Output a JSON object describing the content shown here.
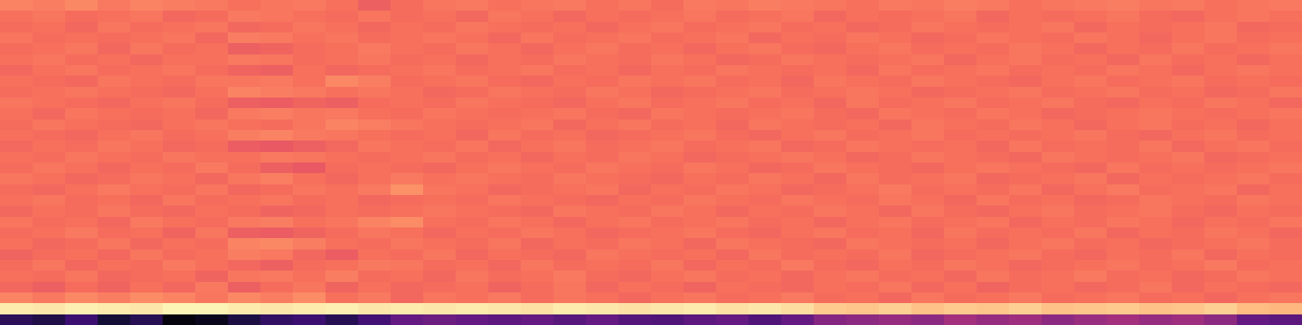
{
  "chart_data": {
    "type": "heatmap",
    "color": "magma",
    "tick_labels": false,
    "zlim": [
      0,
      1
    ],
    "cells": [
      [
        0.16,
        0.13,
        0.2,
        0.1,
        0.15,
        0.02,
        0.05,
        0.12,
        0.18,
        0.2,
        0.15,
        0.22,
        0.3,
        0.32,
        0.3,
        0.28,
        0.3,
        0.27,
        0.3,
        0.26,
        0.25,
        0.28,
        0.3,
        0.25,
        0.3,
        0.38,
        0.4,
        0.42,
        0.4,
        0.45,
        0.42,
        0.44,
        0.4,
        0.43,
        0.45,
        0.42,
        0.44,
        0.4,
        0.3,
        0.28
      ],
      [
        0.96,
        0.95,
        0.97,
        0.96,
        0.95,
        0.98,
        0.98,
        0.96,
        0.95,
        0.96,
        0.97,
        0.95,
        0.96,
        0.95,
        0.96,
        0.95,
        0.94,
        0.96,
        0.95,
        0.94,
        0.95,
        0.96,
        0.94,
        0.95,
        0.93,
        0.89,
        0.88,
        0.9,
        0.87,
        0.89,
        0.88,
        0.9,
        0.87,
        0.88,
        0.89,
        0.87,
        0.88,
        0.9,
        0.86,
        0.85
      ],
      [
        0.74,
        0.72,
        0.75,
        0.73,
        0.76,
        0.74,
        0.71,
        0.75,
        0.73,
        0.76,
        0.7,
        0.72,
        0.68,
        0.71,
        0.7,
        0.72,
        0.69,
        0.71,
        0.7,
        0.68,
        0.7,
        0.71,
        0.69,
        0.7,
        0.72,
        0.69,
        0.7,
        0.68,
        0.71,
        0.69,
        0.7,
        0.72,
        0.69,
        0.7,
        0.71,
        0.69,
        0.7,
        0.68,
        0.7,
        0.71
      ],
      [
        0.68,
        0.66,
        0.69,
        0.67,
        0.7,
        0.68,
        0.72,
        0.66,
        0.69,
        0.71,
        0.67,
        0.7,
        0.68,
        0.69,
        0.7,
        0.67,
        0.69,
        0.71,
        0.68,
        0.7,
        0.69,
        0.67,
        0.7,
        0.69,
        0.68,
        0.7,
        0.69,
        0.71,
        0.68,
        0.7,
        0.67,
        0.69,
        0.7,
        0.68,
        0.69,
        0.71,
        0.68,
        0.7,
        0.69,
        0.68
      ],
      [
        0.7,
        0.69,
        0.71,
        0.68,
        0.69,
        0.7,
        0.67,
        0.71,
        0.72,
        0.7,
        0.73,
        0.69,
        0.7,
        0.68,
        0.71,
        0.69,
        0.7,
        0.72,
        0.69,
        0.68,
        0.7,
        0.71,
        0.69,
        0.7,
        0.68,
        0.7,
        0.71,
        0.69,
        0.7,
        0.68,
        0.71,
        0.69,
        0.7,
        0.72,
        0.69,
        0.7,
        0.68,
        0.69,
        0.71,
        0.7
      ],
      [
        0.69,
        0.71,
        0.68,
        0.7,
        0.69,
        0.72,
        0.7,
        0.68,
        0.66,
        0.69,
        0.7,
        0.72,
        0.71,
        0.69,
        0.7,
        0.68,
        0.71,
        0.69,
        0.7,
        0.69,
        0.71,
        0.68,
        0.7,
        0.69,
        0.72,
        0.69,
        0.68,
        0.7,
        0.69,
        0.71,
        0.7,
        0.68,
        0.69,
        0.7,
        0.71,
        0.69,
        0.7,
        0.72,
        0.69,
        0.7
      ],
      [
        0.67,
        0.69,
        0.7,
        0.68,
        0.71,
        0.69,
        0.7,
        0.73,
        0.72,
        0.68,
        0.65,
        0.7,
        0.69,
        0.71,
        0.68,
        0.7,
        0.69,
        0.68,
        0.71,
        0.7,
        0.69,
        0.7,
        0.68,
        0.71,
        0.69,
        0.7,
        0.69,
        0.71,
        0.68,
        0.69,
        0.7,
        0.71,
        0.69,
        0.68,
        0.7,
        0.69,
        0.71,
        0.68,
        0.7,
        0.69
      ],
      [
        0.7,
        0.68,
        0.69,
        0.71,
        0.68,
        0.7,
        0.69,
        0.74,
        0.75,
        0.73,
        0.7,
        0.69,
        0.71,
        0.7,
        0.69,
        0.71,
        0.68,
        0.7,
        0.69,
        0.71,
        0.7,
        0.68,
        0.71,
        0.7,
        0.69,
        0.68,
        0.71,
        0.7,
        0.69,
        0.7,
        0.68,
        0.7,
        0.71,
        0.69,
        0.7,
        0.68,
        0.69,
        0.7,
        0.71,
        0.69
      ],
      [
        0.69,
        0.7,
        0.72,
        0.69,
        0.7,
        0.67,
        0.71,
        0.66,
        0.65,
        0.67,
        0.69,
        0.71,
        0.7,
        0.68,
        0.7,
        0.69,
        0.71,
        0.7,
        0.68,
        0.69,
        0.7,
        0.71,
        0.69,
        0.68,
        0.7,
        0.71,
        0.69,
        0.7,
        0.68,
        0.71,
        0.69,
        0.7,
        0.69,
        0.71,
        0.68,
        0.7,
        0.69,
        0.71,
        0.7,
        0.68
      ],
      [
        0.71,
        0.69,
        0.7,
        0.68,
        0.72,
        0.7,
        0.69,
        0.72,
        0.73,
        0.7,
        0.71,
        0.74,
        0.76,
        0.7,
        0.69,
        0.71,
        0.7,
        0.68,
        0.7,
        0.71,
        0.69,
        0.7,
        0.71,
        0.69,
        0.7,
        0.68,
        0.7,
        0.71,
        0.69,
        0.7,
        0.71,
        0.68,
        0.7,
        0.69,
        0.71,
        0.7,
        0.68,
        0.7,
        0.69,
        0.71
      ],
      [
        0.68,
        0.7,
        0.69,
        0.71,
        0.69,
        0.68,
        0.7,
        0.69,
        0.67,
        0.68,
        0.7,
        0.69,
        0.7,
        0.71,
        0.7,
        0.69,
        0.68,
        0.71,
        0.7,
        0.69,
        0.71,
        0.7,
        0.68,
        0.7,
        0.69,
        0.71,
        0.7,
        0.68,
        0.71,
        0.69,
        0.68,
        0.7,
        0.71,
        0.69,
        0.7,
        0.71,
        0.69,
        0.68,
        0.7,
        0.69
      ],
      [
        0.7,
        0.71,
        0.69,
        0.7,
        0.68,
        0.71,
        0.69,
        0.7,
        0.71,
        0.69,
        0.7,
        0.68,
        0.69,
        0.7,
        0.69,
        0.71,
        0.7,
        0.69,
        0.68,
        0.7,
        0.69,
        0.71,
        0.7,
        0.69,
        0.71,
        0.7,
        0.69,
        0.71,
        0.7,
        0.68,
        0.71,
        0.69,
        0.7,
        0.68,
        0.69,
        0.71,
        0.7,
        0.69,
        0.71,
        0.7
      ],
      [
        0.69,
        0.68,
        0.7,
        0.72,
        0.7,
        0.69,
        0.71,
        0.68,
        0.69,
        0.71,
        0.7,
        0.72,
        0.77,
        0.71,
        0.7,
        0.68,
        0.69,
        0.7,
        0.71,
        0.68,
        0.7,
        0.69,
        0.71,
        0.7,
        0.68,
        0.69,
        0.7,
        0.72,
        0.69,
        0.7,
        0.69,
        0.71,
        0.68,
        0.7,
        0.72,
        0.69,
        0.7,
        0.71,
        0.68,
        0.7
      ],
      [
        0.71,
        0.7,
        0.68,
        0.69,
        0.71,
        0.7,
        0.68,
        0.71,
        0.73,
        0.7,
        0.68,
        0.7,
        0.72,
        0.7,
        0.71,
        0.7,
        0.69,
        0.71,
        0.7,
        0.69,
        0.68,
        0.7,
        0.69,
        0.71,
        0.7,
        0.68,
        0.71,
        0.69,
        0.7,
        0.71,
        0.68,
        0.69,
        0.7,
        0.71,
        0.68,
        0.7,
        0.69,
        0.7,
        0.71,
        0.69
      ],
      [
        0.69,
        0.71,
        0.7,
        0.68,
        0.7,
        0.69,
        0.72,
        0.69,
        0.66,
        0.64,
        0.69,
        0.7,
        0.69,
        0.68,
        0.7,
        0.71,
        0.7,
        0.69,
        0.71,
        0.7,
        0.69,
        0.71,
        0.7,
        0.68,
        0.69,
        0.71,
        0.7,
        0.69,
        0.68,
        0.7,
        0.71,
        0.7,
        0.69,
        0.68,
        0.71,
        0.69,
        0.7,
        0.69,
        0.7,
        0.71
      ],
      [
        0.7,
        0.69,
        0.71,
        0.7,
        0.69,
        0.71,
        0.7,
        0.7,
        0.72,
        0.71,
        0.7,
        0.69,
        0.7,
        0.71,
        0.69,
        0.7,
        0.68,
        0.7,
        0.69,
        0.71,
        0.7,
        0.68,
        0.69,
        0.7,
        0.71,
        0.7,
        0.68,
        0.69,
        0.71,
        0.7,
        0.69,
        0.68,
        0.71,
        0.7,
        0.69,
        0.7,
        0.71,
        0.68,
        0.69,
        0.7
      ],
      [
        0.68,
        0.7,
        0.69,
        0.71,
        0.7,
        0.68,
        0.69,
        0.65,
        0.64,
        0.66,
        0.68,
        0.71,
        0.7,
        0.69,
        0.71,
        0.68,
        0.7,
        0.71,
        0.69,
        0.7,
        0.71,
        0.69,
        0.7,
        0.71,
        0.68,
        0.69,
        0.71,
        0.7,
        0.69,
        0.7,
        0.68,
        0.71,
        0.69,
        0.7,
        0.69,
        0.71,
        0.68,
        0.7,
        0.71,
        0.69
      ],
      [
        0.7,
        0.69,
        0.68,
        0.7,
        0.71,
        0.69,
        0.7,
        0.73,
        0.74,
        0.72,
        0.71,
        0.7,
        0.69,
        0.7,
        0.68,
        0.71,
        0.69,
        0.7,
        0.68,
        0.69,
        0.7,
        0.71,
        0.69,
        0.68,
        0.7,
        0.71,
        0.69,
        0.7,
        0.71,
        0.69,
        0.7,
        0.69,
        0.7,
        0.71,
        0.69,
        0.68,
        0.7,
        0.71,
        0.69,
        0.7
      ],
      [
        0.69,
        0.71,
        0.7,
        0.69,
        0.68,
        0.7,
        0.71,
        0.7,
        0.69,
        0.71,
        0.74,
        0.73,
        0.71,
        0.7,
        0.69,
        0.7,
        0.71,
        0.68,
        0.7,
        0.71,
        0.69,
        0.7,
        0.68,
        0.71,
        0.7,
        0.69,
        0.7,
        0.68,
        0.71,
        0.7,
        0.69,
        0.71,
        0.7,
        0.68,
        0.7,
        0.71,
        0.69,
        0.7,
        0.68,
        0.7
      ],
      [
        0.7,
        0.68,
        0.71,
        0.7,
        0.69,
        0.7,
        0.68,
        0.72,
        0.73,
        0.71,
        0.72,
        0.7,
        0.69,
        0.71,
        0.7,
        0.69,
        0.7,
        0.71,
        0.69,
        0.68,
        0.71,
        0.7,
        0.69,
        0.7,
        0.71,
        0.69,
        0.68,
        0.71,
        0.7,
        0.69,
        0.71,
        0.7,
        0.68,
        0.69,
        0.7,
        0.71,
        0.7,
        0.69,
        0.7,
        0.71
      ],
      [
        0.71,
        0.7,
        0.69,
        0.68,
        0.7,
        0.71,
        0.69,
        0.66,
        0.65,
        0.67,
        0.66,
        0.69,
        0.7,
        0.69,
        0.71,
        0.7,
        0.69,
        0.68,
        0.7,
        0.71,
        0.69,
        0.7,
        0.71,
        0.69,
        0.7,
        0.68,
        0.71,
        0.69,
        0.7,
        0.71,
        0.69,
        0.7,
        0.71,
        0.69,
        0.68,
        0.7,
        0.69,
        0.71,
        0.7,
        0.68
      ],
      [
        0.69,
        0.7,
        0.71,
        0.7,
        0.69,
        0.68,
        0.7,
        0.74,
        0.73,
        0.72,
        0.7,
        0.71,
        0.7,
        0.68,
        0.69,
        0.71,
        0.7,
        0.69,
        0.71,
        0.7,
        0.68,
        0.69,
        0.7,
        0.71,
        0.69,
        0.7,
        0.71,
        0.7,
        0.68,
        0.69,
        0.7,
        0.71,
        0.69,
        0.7,
        0.71,
        0.69,
        0.7,
        0.68,
        0.69,
        0.71
      ],
      [
        0.7,
        0.69,
        0.68,
        0.71,
        0.7,
        0.69,
        0.71,
        0.71,
        0.72,
        0.7,
        0.75,
        0.73,
        0.69,
        0.7,
        0.71,
        0.69,
        0.68,
        0.7,
        0.69,
        0.71,
        0.7,
        0.71,
        0.69,
        0.7,
        0.68,
        0.71,
        0.7,
        0.69,
        0.71,
        0.7,
        0.69,
        0.68,
        0.7,
        0.71,
        0.69,
        0.7,
        0.71,
        0.69,
        0.7,
        0.69
      ],
      [
        0.68,
        0.7,
        0.71,
        0.69,
        0.7,
        0.71,
        0.69,
        0.67,
        0.66,
        0.7,
        0.68,
        0.69,
        0.7,
        0.71,
        0.69,
        0.7,
        0.71,
        0.69,
        0.7,
        0.68,
        0.7,
        0.69,
        0.71,
        0.7,
        0.69,
        0.7,
        0.68,
        0.71,
        0.69,
        0.7,
        0.71,
        0.69,
        0.7,
        0.69,
        0.71,
        0.7,
        0.68,
        0.7,
        0.71,
        0.7
      ],
      [
        0.7,
        0.71,
        0.69,
        0.7,
        0.68,
        0.7,
        0.7,
        0.72,
        0.71,
        0.69,
        0.7,
        0.71,
        0.69,
        0.7,
        0.68,
        0.7,
        0.69,
        0.71,
        0.7,
        0.69,
        0.71,
        0.7,
        0.68,
        0.69,
        0.71,
        0.7,
        0.69,
        0.7,
        0.71,
        0.68,
        0.7,
        0.71,
        0.69,
        0.7,
        0.68,
        0.71,
        0.69,
        0.7,
        0.68,
        0.7
      ],
      [
        0.69,
        0.7,
        0.71,
        0.68,
        0.71,
        0.69,
        0.7,
        0.66,
        0.67,
        0.69,
        0.7,
        0.72,
        0.7,
        0.69,
        0.71,
        0.7,
        0.68,
        0.7,
        0.71,
        0.69,
        0.7,
        0.68,
        0.7,
        0.71,
        0.69,
        0.68,
        0.7,
        0.71,
        0.69,
        0.7,
        0.69,
        0.71,
        0.7,
        0.68,
        0.7,
        0.69,
        0.71,
        0.69,
        0.7,
        0.71
      ],
      [
        0.71,
        0.69,
        0.7,
        0.69,
        0.7,
        0.71,
        0.68,
        0.73,
        0.72,
        0.7,
        0.71,
        0.69,
        0.7,
        0.71,
        0.7,
        0.68,
        0.71,
        0.69,
        0.7,
        0.71,
        0.69,
        0.7,
        0.71,
        0.68,
        0.7,
        0.69,
        0.71,
        0.7,
        0.68,
        0.69,
        0.71,
        0.7,
        0.69,
        0.71,
        0.7,
        0.68,
        0.7,
        0.71,
        0.69,
        0.7
      ],
      [
        0.69,
        0.7,
        0.68,
        0.71,
        0.69,
        0.7,
        0.71,
        0.68,
        0.69,
        0.71,
        0.7,
        0.68,
        0.7,
        0.69,
        0.71,
        0.7,
        0.69,
        0.7,
        0.68,
        0.7,
        0.71,
        0.69,
        0.7,
        0.71,
        0.69,
        0.7,
        0.68,
        0.69,
        0.71,
        0.7,
        0.69,
        0.7,
        0.71,
        0.68,
        0.7,
        0.69,
        0.7,
        0.71,
        0.68,
        0.69
      ],
      [
        0.7,
        0.71,
        0.69,
        0.7,
        0.71,
        0.68,
        0.69,
        0.72,
        0.71,
        0.7,
        0.69,
        0.71,
        0.69,
        0.7,
        0.68,
        0.71,
        0.7,
        0.68,
        0.7,
        0.69,
        0.7,
        0.71,
        0.69,
        0.7,
        0.71,
        0.68,
        0.7,
        0.69,
        0.7,
        0.71,
        0.68,
        0.7,
        0.69,
        0.7,
        0.71,
        0.69,
        0.68,
        0.7,
        0.71,
        0.7
      ],
      [
        0.74,
        0.73,
        0.75,
        0.72,
        0.74,
        0.73,
        0.72,
        0.7,
        0.71,
        0.72,
        0.7,
        0.66,
        0.69,
        0.71,
        0.72,
        0.7,
        0.71,
        0.72,
        0.7,
        0.71,
        0.69,
        0.72,
        0.71,
        0.73,
        0.72,
        0.71,
        0.7,
        0.72,
        0.71,
        0.73,
        0.72,
        0.7,
        0.71,
        0.72,
        0.73,
        0.71,
        0.72,
        0.7,
        0.71,
        0.72
      ]
    ]
  }
}
